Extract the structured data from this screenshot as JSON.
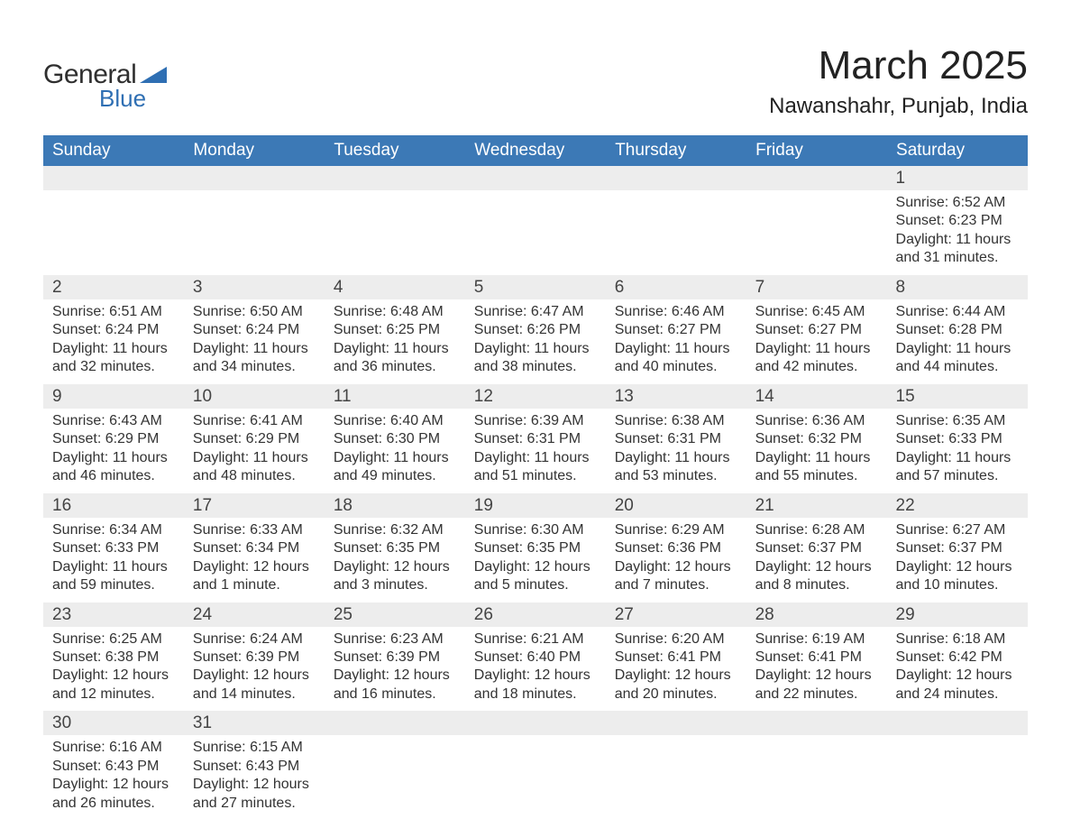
{
  "colors": {
    "header_bg": "#3c79b6",
    "header_text": "#ffffff",
    "daynum_bg": "#ededed",
    "row_divider": "#3c79b6",
    "body_text": "#333333",
    "title_text": "#222222",
    "logo_dark": "#2f2f2f",
    "logo_blue": "#2f6fb3",
    "page_bg": "#ffffff"
  },
  "typography": {
    "font_family": "Arial, Helvetica, sans-serif",
    "month_title_size_pt": 33,
    "location_size_pt": 18,
    "weekday_header_size_pt": 14,
    "daynum_size_pt": 14,
    "detail_size_pt": 12
  },
  "logo": {
    "line1": "General",
    "line2": "Blue",
    "shape_color": "#2f6fb3"
  },
  "title": "March 2025",
  "location": "Nawanshahr, Punjab, India",
  "weekdays": [
    "Sunday",
    "Monday",
    "Tuesday",
    "Wednesday",
    "Thursday",
    "Friday",
    "Saturday"
  ],
  "weeks": [
    [
      null,
      null,
      null,
      null,
      null,
      null,
      {
        "day": "1",
        "sunrise": "Sunrise: 6:52 AM",
        "sunset": "Sunset: 6:23 PM",
        "daylight": "Daylight: 11 hours and 31 minutes."
      }
    ],
    [
      {
        "day": "2",
        "sunrise": "Sunrise: 6:51 AM",
        "sunset": "Sunset: 6:24 PM",
        "daylight": "Daylight: 11 hours and 32 minutes."
      },
      {
        "day": "3",
        "sunrise": "Sunrise: 6:50 AM",
        "sunset": "Sunset: 6:24 PM",
        "daylight": "Daylight: 11 hours and 34 minutes."
      },
      {
        "day": "4",
        "sunrise": "Sunrise: 6:48 AM",
        "sunset": "Sunset: 6:25 PM",
        "daylight": "Daylight: 11 hours and 36 minutes."
      },
      {
        "day": "5",
        "sunrise": "Sunrise: 6:47 AM",
        "sunset": "Sunset: 6:26 PM",
        "daylight": "Daylight: 11 hours and 38 minutes."
      },
      {
        "day": "6",
        "sunrise": "Sunrise: 6:46 AM",
        "sunset": "Sunset: 6:27 PM",
        "daylight": "Daylight: 11 hours and 40 minutes."
      },
      {
        "day": "7",
        "sunrise": "Sunrise: 6:45 AM",
        "sunset": "Sunset: 6:27 PM",
        "daylight": "Daylight: 11 hours and 42 minutes."
      },
      {
        "day": "8",
        "sunrise": "Sunrise: 6:44 AM",
        "sunset": "Sunset: 6:28 PM",
        "daylight": "Daylight: 11 hours and 44 minutes."
      }
    ],
    [
      {
        "day": "9",
        "sunrise": "Sunrise: 6:43 AM",
        "sunset": "Sunset: 6:29 PM",
        "daylight": "Daylight: 11 hours and 46 minutes."
      },
      {
        "day": "10",
        "sunrise": "Sunrise: 6:41 AM",
        "sunset": "Sunset: 6:29 PM",
        "daylight": "Daylight: 11 hours and 48 minutes."
      },
      {
        "day": "11",
        "sunrise": "Sunrise: 6:40 AM",
        "sunset": "Sunset: 6:30 PM",
        "daylight": "Daylight: 11 hours and 49 minutes."
      },
      {
        "day": "12",
        "sunrise": "Sunrise: 6:39 AM",
        "sunset": "Sunset: 6:31 PM",
        "daylight": "Daylight: 11 hours and 51 minutes."
      },
      {
        "day": "13",
        "sunrise": "Sunrise: 6:38 AM",
        "sunset": "Sunset: 6:31 PM",
        "daylight": "Daylight: 11 hours and 53 minutes."
      },
      {
        "day": "14",
        "sunrise": "Sunrise: 6:36 AM",
        "sunset": "Sunset: 6:32 PM",
        "daylight": "Daylight: 11 hours and 55 minutes."
      },
      {
        "day": "15",
        "sunrise": "Sunrise: 6:35 AM",
        "sunset": "Sunset: 6:33 PM",
        "daylight": "Daylight: 11 hours and 57 minutes."
      }
    ],
    [
      {
        "day": "16",
        "sunrise": "Sunrise: 6:34 AM",
        "sunset": "Sunset: 6:33 PM",
        "daylight": "Daylight: 11 hours and 59 minutes."
      },
      {
        "day": "17",
        "sunrise": "Sunrise: 6:33 AM",
        "sunset": "Sunset: 6:34 PM",
        "daylight": "Daylight: 12 hours and 1 minute."
      },
      {
        "day": "18",
        "sunrise": "Sunrise: 6:32 AM",
        "sunset": "Sunset: 6:35 PM",
        "daylight": "Daylight: 12 hours and 3 minutes."
      },
      {
        "day": "19",
        "sunrise": "Sunrise: 6:30 AM",
        "sunset": "Sunset: 6:35 PM",
        "daylight": "Daylight: 12 hours and 5 minutes."
      },
      {
        "day": "20",
        "sunrise": "Sunrise: 6:29 AM",
        "sunset": "Sunset: 6:36 PM",
        "daylight": "Daylight: 12 hours and 7 minutes."
      },
      {
        "day": "21",
        "sunrise": "Sunrise: 6:28 AM",
        "sunset": "Sunset: 6:37 PM",
        "daylight": "Daylight: 12 hours and 8 minutes."
      },
      {
        "day": "22",
        "sunrise": "Sunrise: 6:27 AM",
        "sunset": "Sunset: 6:37 PM",
        "daylight": "Daylight: 12 hours and 10 minutes."
      }
    ],
    [
      {
        "day": "23",
        "sunrise": "Sunrise: 6:25 AM",
        "sunset": "Sunset: 6:38 PM",
        "daylight": "Daylight: 12 hours and 12 minutes."
      },
      {
        "day": "24",
        "sunrise": "Sunrise: 6:24 AM",
        "sunset": "Sunset: 6:39 PM",
        "daylight": "Daylight: 12 hours and 14 minutes."
      },
      {
        "day": "25",
        "sunrise": "Sunrise: 6:23 AM",
        "sunset": "Sunset: 6:39 PM",
        "daylight": "Daylight: 12 hours and 16 minutes."
      },
      {
        "day": "26",
        "sunrise": "Sunrise: 6:21 AM",
        "sunset": "Sunset: 6:40 PM",
        "daylight": "Daylight: 12 hours and 18 minutes."
      },
      {
        "day": "27",
        "sunrise": "Sunrise: 6:20 AM",
        "sunset": "Sunset: 6:41 PM",
        "daylight": "Daylight: 12 hours and 20 minutes."
      },
      {
        "day": "28",
        "sunrise": "Sunrise: 6:19 AM",
        "sunset": "Sunset: 6:41 PM",
        "daylight": "Daylight: 12 hours and 22 minutes."
      },
      {
        "day": "29",
        "sunrise": "Sunrise: 6:18 AM",
        "sunset": "Sunset: 6:42 PM",
        "daylight": "Daylight: 12 hours and 24 minutes."
      }
    ],
    [
      {
        "day": "30",
        "sunrise": "Sunrise: 6:16 AM",
        "sunset": "Sunset: 6:43 PM",
        "daylight": "Daylight: 12 hours and 26 minutes."
      },
      {
        "day": "31",
        "sunrise": "Sunrise: 6:15 AM",
        "sunset": "Sunset: 6:43 PM",
        "daylight": "Daylight: 12 hours and 27 minutes."
      },
      null,
      null,
      null,
      null,
      null
    ]
  ]
}
